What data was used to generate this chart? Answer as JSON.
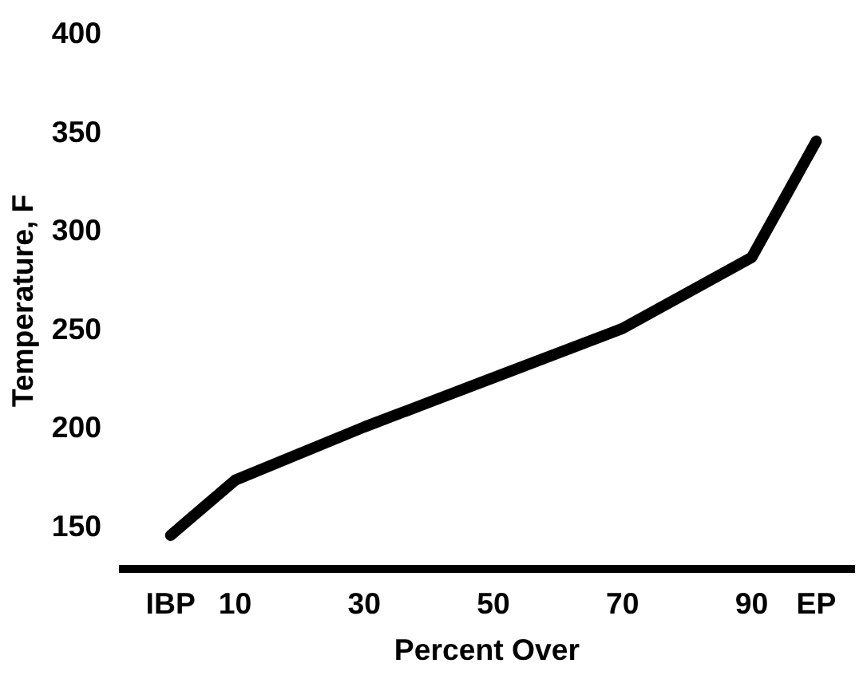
{
  "chart_data": {
    "type": "line",
    "xlabel": "Percent Over",
    "ylabel": "Temperature, F",
    "x": [
      0,
      10,
      30,
      50,
      70,
      90,
      100
    ],
    "series": [
      {
        "color": "#000000",
        "values": [
          145,
          173,
          200,
          225,
          250,
          286,
          345
        ]
      }
    ],
    "xlim": [
      -8,
      106
    ],
    "ylim": [
      128,
      400
    ],
    "xticks": [
      {
        "value": 0,
        "label": "IBP"
      },
      10,
      30,
      50,
      70,
      90,
      {
        "value": 100,
        "label": "EP"
      }
    ],
    "yticks": [
      150,
      200,
      250,
      300,
      350,
      400
    ],
    "grid": false,
    "marker": "none",
    "line_style": "solid"
  }
}
